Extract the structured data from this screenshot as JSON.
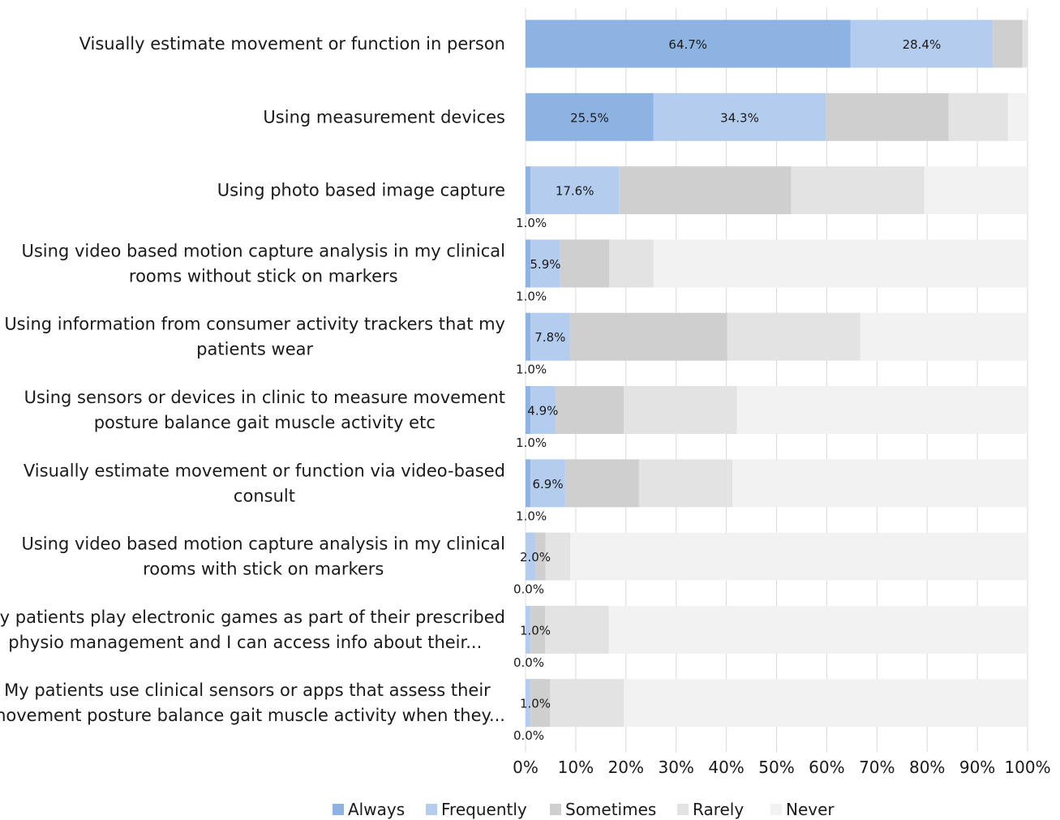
{
  "chart_data": {
    "type": "bar",
    "orientation": "horizontal",
    "stacked": true,
    "categories": [
      [
        "Visually estimate movement or function in person"
      ],
      [
        "Using measurement devices"
      ],
      [
        "Using photo based image capture"
      ],
      [
        "Using video based motion capture analysis in my clinical",
        "rooms without stick on markers"
      ],
      [
        "Using information from consumer activity trackers that my",
        "patients wear"
      ],
      [
        "Using sensors or devices in clinic to measure movement",
        "posture balance gait muscle activity etc"
      ],
      [
        "Visually estimate movement or function via video-based",
        "consult"
      ],
      [
        "Using video based motion capture analysis in my clinical",
        "rooms with stick on markers"
      ],
      [
        "My patients play electronic games as part of their prescribed",
        "physio management and I can access info about their..."
      ],
      [
        "My patients use clinical sensors or apps that assess their",
        "movement posture balance gait muscle activity when they..."
      ]
    ],
    "series": [
      {
        "name": "Always",
        "color": "#8db3e2",
        "values": [
          64.7,
          25.5,
          1.0,
          1.0,
          1.0,
          1.0,
          1.0,
          0.0,
          0.0,
          0.0
        ]
      },
      {
        "name": "Frequently",
        "color": "#b4cdee",
        "values": [
          28.4,
          34.3,
          17.6,
          5.9,
          7.8,
          4.9,
          6.9,
          2.0,
          1.0,
          1.0
        ]
      },
      {
        "name": "Sometimes",
        "color": "#cfcfcf",
        "values": [
          5.9,
          24.5,
          34.3,
          9.8,
          31.4,
          13.7,
          14.7,
          2.0,
          2.9,
          3.9
        ]
      },
      {
        "name": "Rarely",
        "color": "#e3e3e3",
        "values": [
          1.0,
          11.8,
          26.5,
          8.8,
          26.5,
          22.5,
          18.6,
          4.9,
          12.7,
          14.7
        ]
      },
      {
        "name": "Never",
        "color": "#f2f2f2",
        "values": [
          0.0,
          3.9,
          20.6,
          74.5,
          33.3,
          57.9,
          58.8,
          91.1,
          83.4,
          80.4
        ]
      }
    ],
    "data_labels": [
      {
        "row": 0,
        "series": 0,
        "text": "64.7%"
      },
      {
        "row": 0,
        "series": 1,
        "text": "28.4%"
      },
      {
        "row": 1,
        "series": 0,
        "text": "25.5%"
      },
      {
        "row": 1,
        "series": 1,
        "text": "34.3%"
      },
      {
        "row": 2,
        "series": 1,
        "text": "17.6%"
      },
      {
        "row": 2,
        "series": 0,
        "text": "1.0%",
        "placement": "below"
      },
      {
        "row": 3,
        "series": 1,
        "text": "5.9%"
      },
      {
        "row": 3,
        "series": 0,
        "text": "1.0%",
        "placement": "below"
      },
      {
        "row": 4,
        "series": 1,
        "text": "7.8%"
      },
      {
        "row": 4,
        "series": 0,
        "text": "1.0%",
        "placement": "below"
      },
      {
        "row": 5,
        "series": 1,
        "text": "4.9%"
      },
      {
        "row": 5,
        "series": 0,
        "text": "1.0%",
        "placement": "below"
      },
      {
        "row": 6,
        "series": 1,
        "text": "6.9%"
      },
      {
        "row": 6,
        "series": 0,
        "text": "1.0%",
        "placement": "below"
      },
      {
        "row": 7,
        "series": 1,
        "text": "2.0%"
      },
      {
        "row": 7,
        "series": 0,
        "text": "0.0%",
        "placement": "below"
      },
      {
        "row": 8,
        "series": 1,
        "text": "1.0%"
      },
      {
        "row": 8,
        "series": 0,
        "text": "0.0%",
        "placement": "below"
      },
      {
        "row": 9,
        "series": 1,
        "text": "1.0%"
      },
      {
        "row": 9,
        "series": 0,
        "text": "0.0%",
        "placement": "below"
      }
    ],
    "xlim": [
      0,
      100
    ],
    "xticks": [
      "0%",
      "10%",
      "20%",
      "30%",
      "40%",
      "50%",
      "60%",
      "70%",
      "80%",
      "90%",
      "100%"
    ],
    "title": "",
    "xlabel": "",
    "ylabel": "",
    "legend_position": "bottom",
    "grid": true
  }
}
